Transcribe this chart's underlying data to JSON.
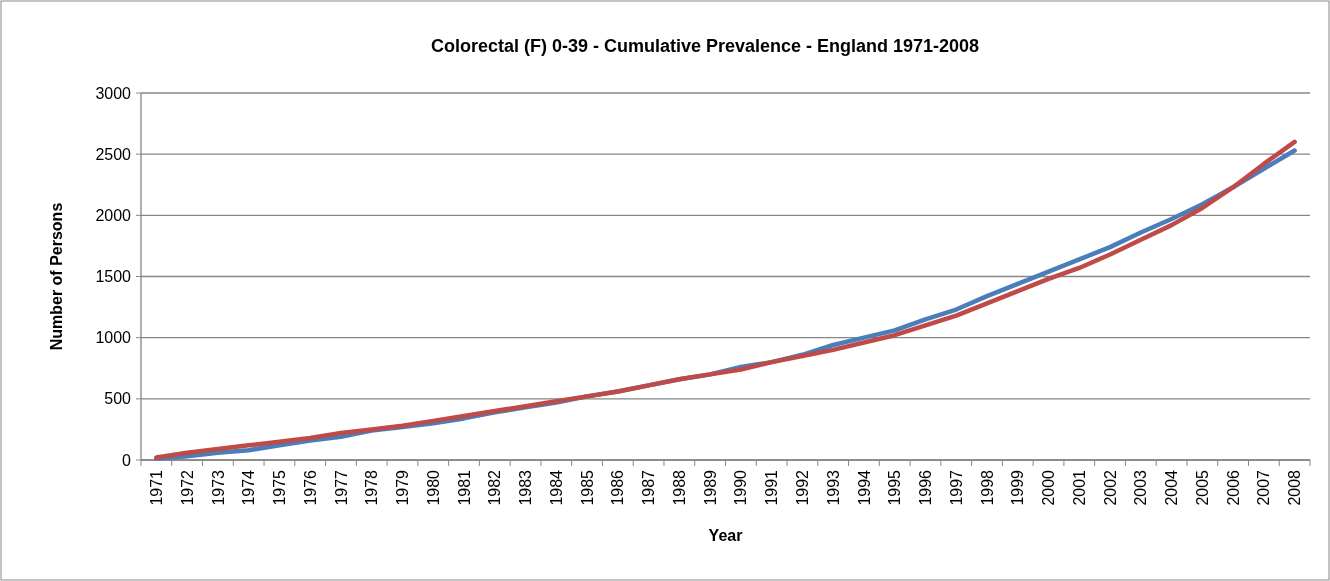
{
  "chart_data": {
    "type": "line",
    "title": "Colorectal (F) 0-39 - Cumulative Prevalence - England 1971-2008",
    "xlabel": "Year",
    "ylabel": "Number of Persons",
    "categories": [
      "1971",
      "1972",
      "1973",
      "1974",
      "1975",
      "1976",
      "1977",
      "1978",
      "1979",
      "1980",
      "1981",
      "1982",
      "1983",
      "1984",
      "1985",
      "1986",
      "1987",
      "1988",
      "1989",
      "1990",
      "1991",
      "1992",
      "1993",
      "1994",
      "1995",
      "1996",
      "1997",
      "1998",
      "1999",
      "2000",
      "2001",
      "2002",
      "2003",
      "2004",
      "2005",
      "2006",
      "2007",
      "2008"
    ],
    "series": [
      {
        "color": "#4a7ebb",
        "values": [
          10,
          30,
          60,
          80,
          120,
          160,
          190,
          240,
          270,
          300,
          340,
          390,
          430,
          470,
          520,
          560,
          610,
          660,
          700,
          760,
          800,
          860,
          940,
          1000,
          1060,
          1150,
          1230,
          1340,
          1440,
          1540,
          1640,
          1740,
          1860,
          1970,
          2090,
          2230,
          2380,
          2530
        ]
      },
      {
        "color": "#be4b48",
        "values": [
          20,
          60,
          90,
          120,
          150,
          180,
          220,
          250,
          280,
          320,
          360,
          400,
          440,
          480,
          520,
          560,
          610,
          660,
          700,
          740,
          800,
          850,
          900,
          960,
          1020,
          1100,
          1180,
          1280,
          1380,
          1480,
          1570,
          1680,
          1800,
          1920,
          2060,
          2230,
          2420,
          2600
        ]
      }
    ],
    "ylim": [
      0,
      3000
    ],
    "yticks": [
      0,
      500,
      1000,
      1500,
      2000,
      2500,
      3000
    ],
    "grid": "y",
    "marker": "none",
    "line_style": "solid"
  }
}
